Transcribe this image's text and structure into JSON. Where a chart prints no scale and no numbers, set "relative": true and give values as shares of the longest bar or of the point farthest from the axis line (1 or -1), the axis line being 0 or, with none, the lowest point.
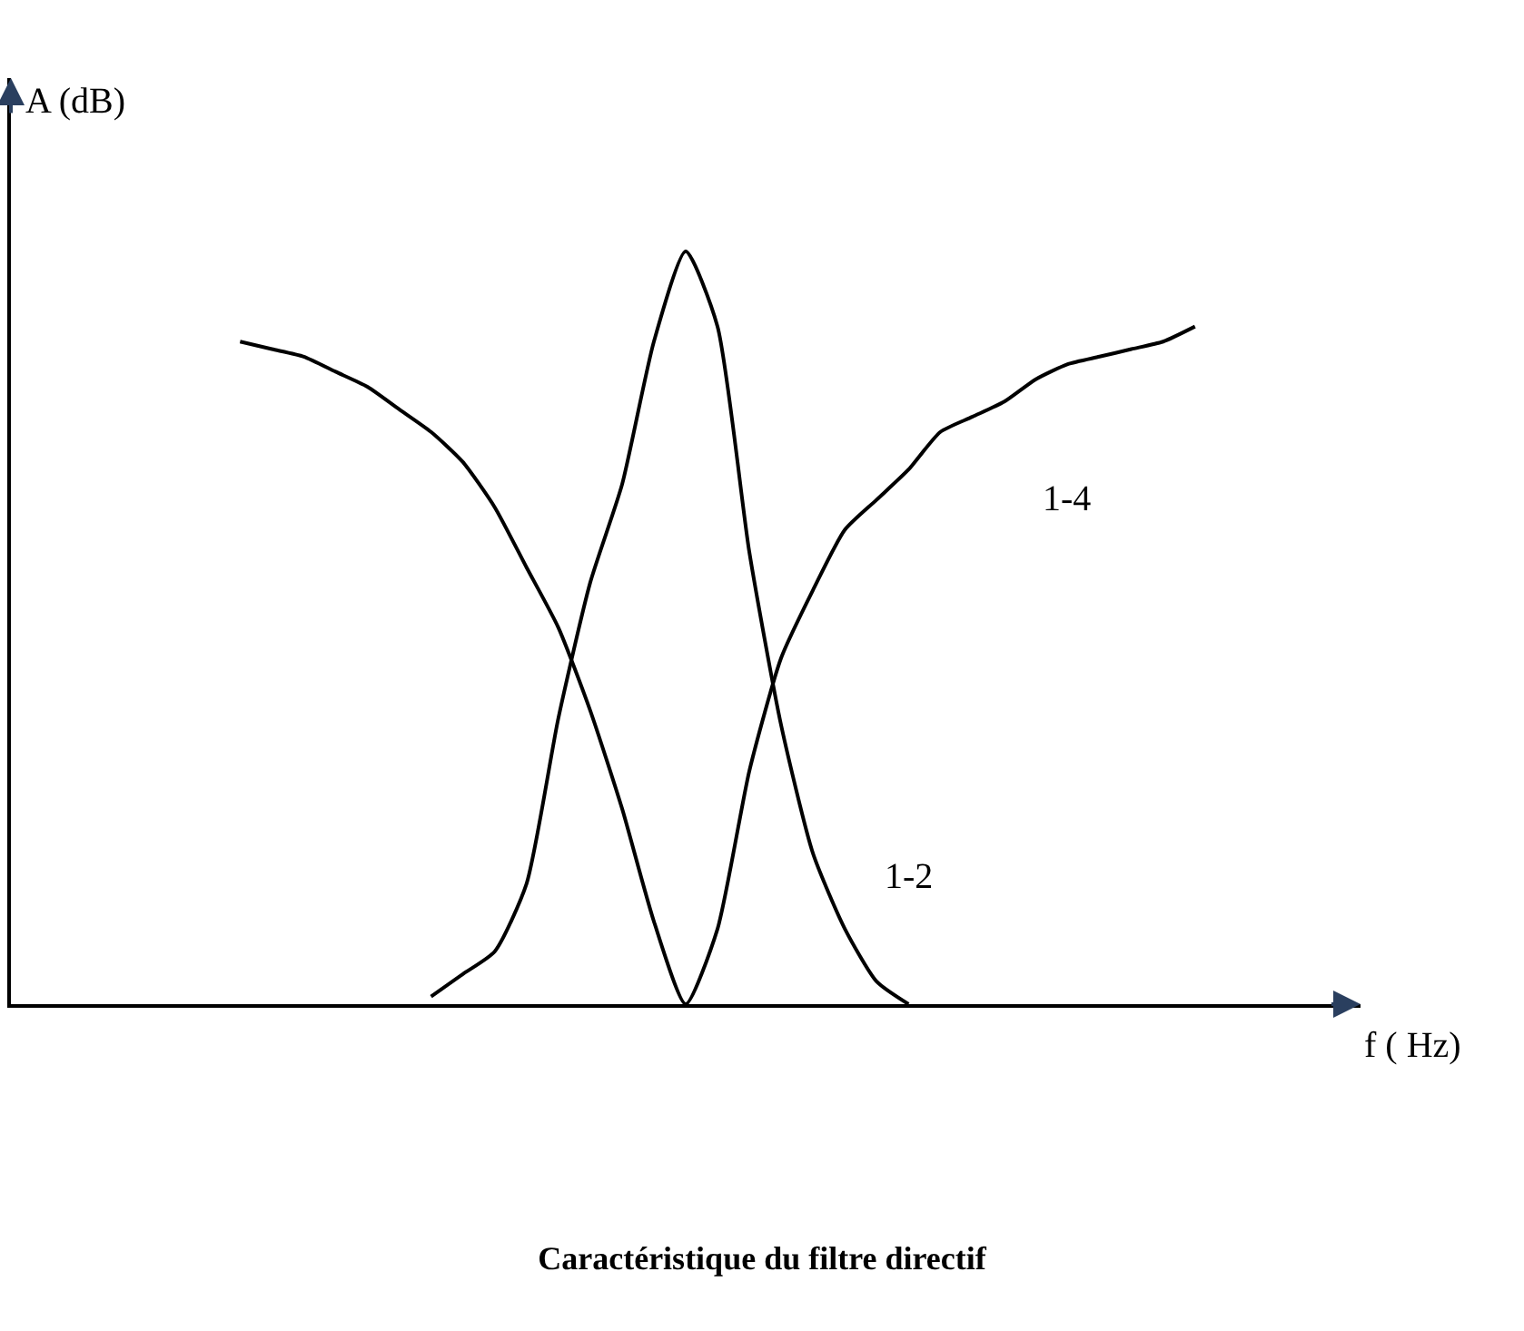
{
  "chart_data": {
    "type": "line",
    "title": "Caractéristique du filtre directif",
    "xlabel": "f ( Hz)",
    "ylabel": "A (dB)",
    "relative": true,
    "legend": false,
    "marker": "none",
    "line_style": "solid",
    "categories": [
      null,
      null,
      null,
      null,
      null,
      null,
      null,
      null,
      null,
      null,
      null,
      null,
      null,
      null,
      null,
      null,
      null,
      null,
      null,
      null,
      null,
      null,
      null,
      null,
      null,
      null,
      null,
      null,
      null,
      null,
      null
    ],
    "series": [
      {
        "name": "1-4",
        "color": "#000000",
        "values": [
          0.88,
          0.87,
          0.86,
          0.84,
          0.82,
          0.79,
          0.76,
          0.72,
          0.66,
          0.58,
          0.5,
          0.39,
          0.26,
          0.11,
          0,
          0.1,
          0.31,
          0.46,
          0.55,
          0.63,
          0.67,
          0.71,
          0.76,
          0.78,
          0.8,
          0.83,
          0.85,
          0.86,
          0.87,
          0.88,
          0.9
        ]
      },
      {
        "name": "1-2",
        "color": "#000000",
        "values": [
          null,
          null,
          null,
          null,
          null,
          null,
          0.01,
          0.04,
          0.07,
          0.16,
          0.38,
          0.56,
          0.69,
          0.88,
          1,
          0.9,
          0.6,
          0.37,
          0.2,
          0.1,
          0.03,
          0,
          null,
          null,
          null,
          null,
          null,
          null,
          null,
          null,
          null
        ]
      }
    ]
  }
}
